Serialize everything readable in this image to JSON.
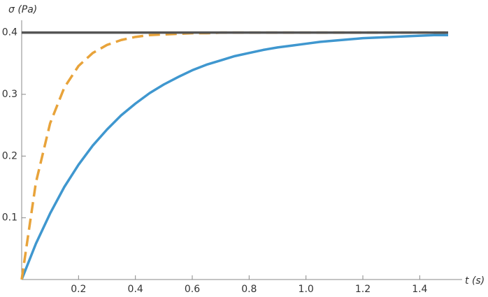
{
  "chart_data": {
    "type": "line",
    "y_label": "σ (Pa)",
    "x_label": "t (s)",
    "x": [
      0,
      0.05,
      0.1,
      0.15,
      0.2,
      0.25,
      0.3,
      0.35,
      0.4,
      0.45,
      0.5,
      0.55,
      0.6,
      0.65,
      0.7,
      0.75,
      0.8,
      0.85,
      0.9,
      0.95,
      1.0,
      1.05,
      1.1,
      1.15,
      1.2,
      1.25,
      1.3,
      1.35,
      1.4,
      1.45,
      1.5
    ],
    "series": [
      {
        "color": "#3f97cf",
        "dashed": false,
        "values": [
          0,
          0.058,
          0.107,
          0.15,
          0.186,
          0.217,
          0.243,
          0.266,
          0.285,
          0.302,
          0.316,
          0.328,
          0.339,
          0.348,
          0.355,
          0.362,
          0.367,
          0.372,
          0.376,
          0.379,
          0.382,
          0.385,
          0.387,
          0.389,
          0.391,
          0.392,
          0.393,
          0.394,
          0.395,
          0.396,
          0.396
        ]
      },
      {
        "color": "#e8a33a",
        "dashed": true,
        "values": [
          0,
          0.157,
          0.253,
          0.311,
          0.346,
          0.367,
          0.38,
          0.388,
          0.393,
          0.396,
          0.397,
          0.398,
          0.399,
          0.399,
          0.4,
          0.4,
          0.4,
          0.4,
          0.4,
          0.4,
          0.4,
          0.4,
          0.4,
          0.4,
          0.4,
          0.4,
          0.4,
          0.4,
          0.4,
          0.4,
          0.4
        ]
      },
      {
        "color": "#555555",
        "dashed": false,
        "values": [
          0.4,
          0.4,
          0.4,
          0.4,
          0.4,
          0.4,
          0.4,
          0.4,
          0.4,
          0.4,
          0.4,
          0.4,
          0.4,
          0.4,
          0.4,
          0.4,
          0.4,
          0.4,
          0.4,
          0.4,
          0.4,
          0.4,
          0.4,
          0.4,
          0.4,
          0.4,
          0.4,
          0.4,
          0.4,
          0.4,
          0.4
        ]
      }
    ],
    "xlim": [
      0,
      1.5
    ],
    "ylim": [
      0,
      0.42
    ],
    "xticks": [
      0.2,
      0.4,
      0.6,
      0.8,
      {
        "value": 1,
        "label": "1.0"
      },
      1.2,
      1.4
    ],
    "yticks": [
      0.1,
      0.2,
      0.3,
      0.4
    ]
  }
}
